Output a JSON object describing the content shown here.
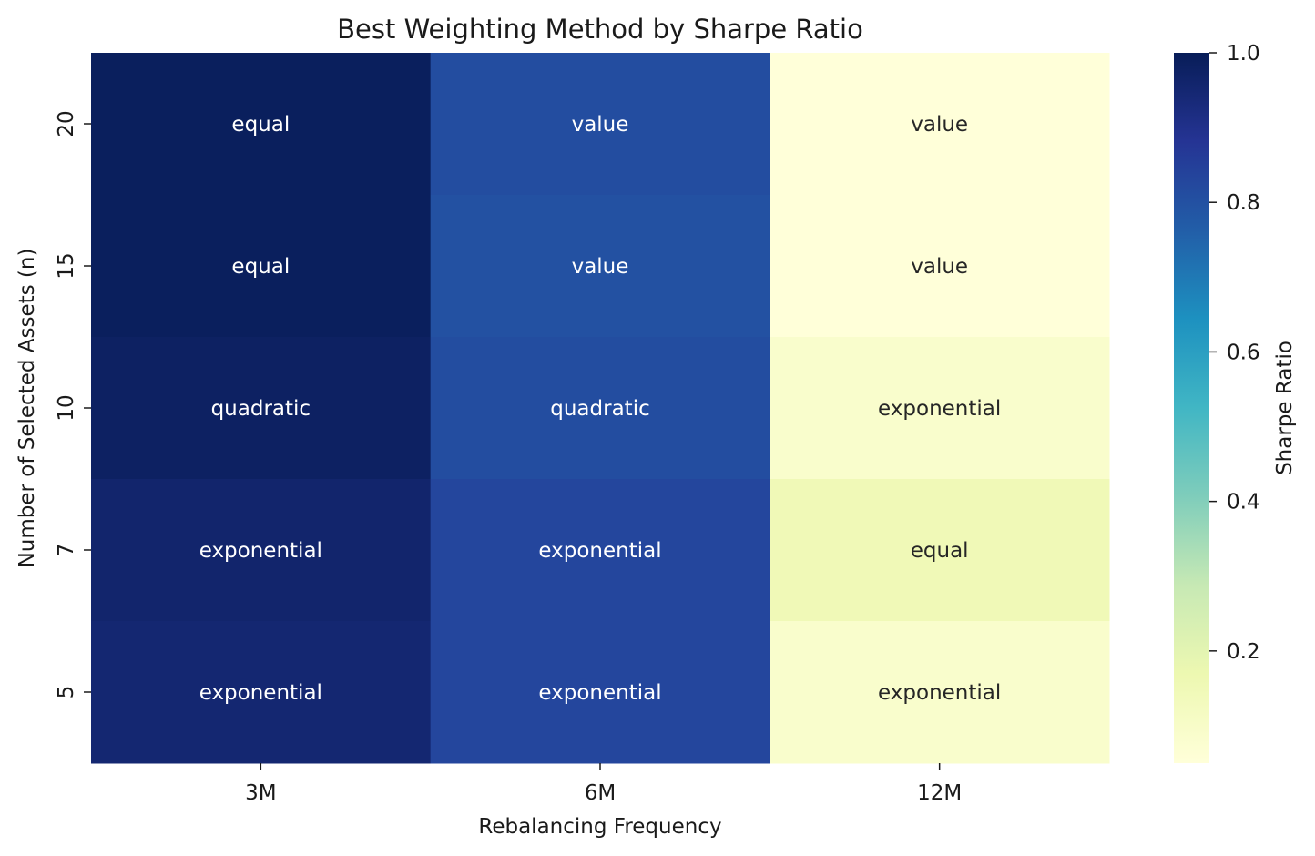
{
  "chart_data": {
    "type": "heatmap",
    "title": "Best Weighting Method by Sharpe Ratio",
    "xlabel": "Rebalancing Frequency",
    "ylabel": "Number of Selected Assets (n)",
    "x_categories": [
      "3M",
      "6M",
      "12M"
    ],
    "y_categories": [
      "20",
      "15",
      "10",
      "7",
      "5"
    ],
    "cells": [
      [
        {
          "label": "equal",
          "value": 0.99
        },
        {
          "label": "value",
          "value": 0.81
        },
        {
          "label": "value",
          "value": 0.05
        }
      ],
      [
        {
          "label": "equal",
          "value": 0.99
        },
        {
          "label": "value",
          "value": 0.8
        },
        {
          "label": "value",
          "value": 0.05
        }
      ],
      [
        {
          "label": "quadratic",
          "value": 0.98
        },
        {
          "label": "quadratic",
          "value": 0.81
        },
        {
          "label": "exponential",
          "value": 0.09
        }
      ],
      [
        {
          "label": "exponential",
          "value": 0.96
        },
        {
          "label": "exponential",
          "value": 0.83
        },
        {
          "label": "equal",
          "value": 0.15
        }
      ],
      [
        {
          "label": "exponential",
          "value": 0.95
        },
        {
          "label": "exponential",
          "value": 0.83
        },
        {
          "label": "exponential",
          "value": 0.09
        }
      ]
    ],
    "colorbar": {
      "label": "Sharpe Ratio",
      "range": [
        0.05,
        1.0
      ],
      "ticks": [
        0.2,
        0.4,
        0.6,
        0.8,
        1.0
      ],
      "tick_labels": [
        "0.2",
        "0.4",
        "0.6",
        "0.8",
        "1.0"
      ],
      "colormap": "YlGnBu"
    },
    "grid": false
  }
}
